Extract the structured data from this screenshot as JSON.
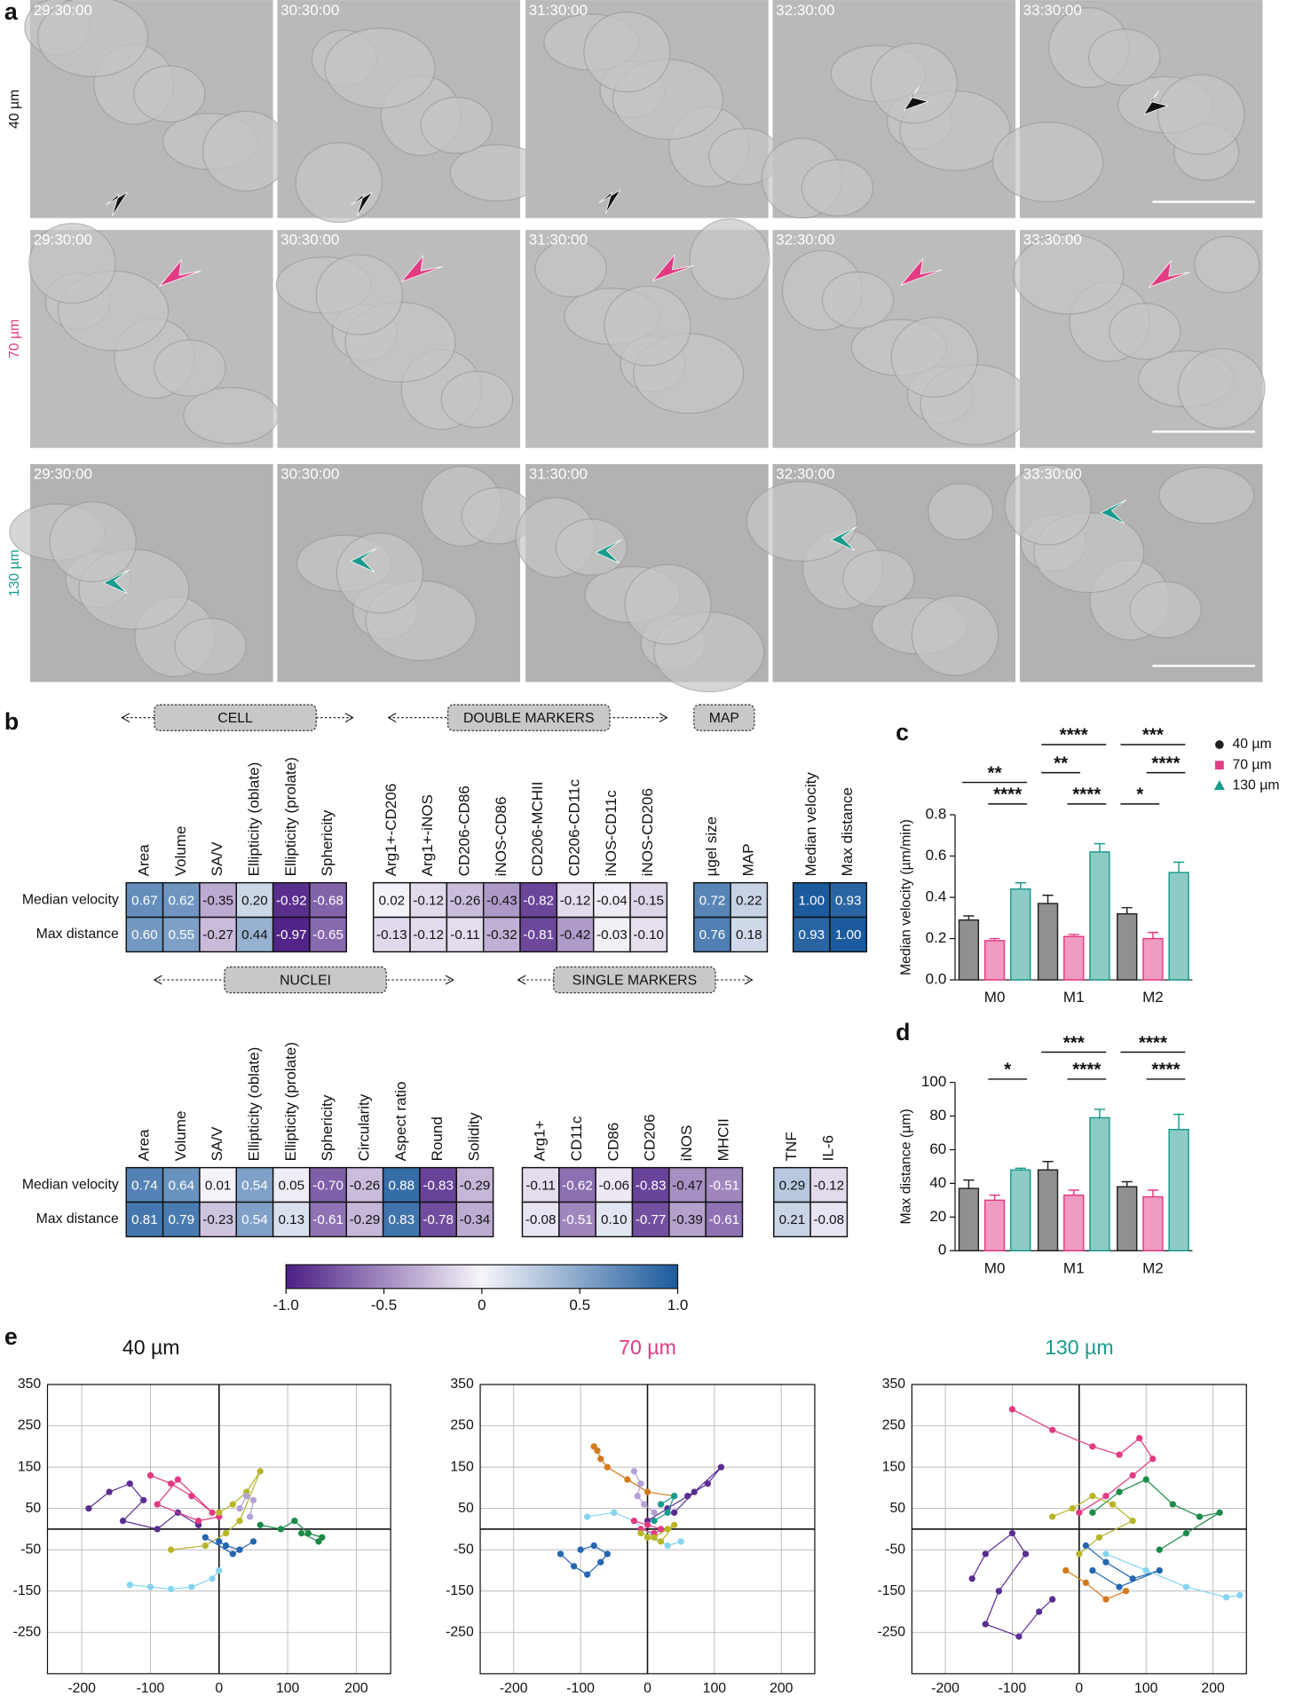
{
  "panel_a": {
    "label": "a",
    "times": [
      "29:30:00",
      "30:30:00",
      "31:30:00",
      "32:30:00",
      "33:30:00"
    ],
    "rows": [
      "40 µm",
      "70 µm",
      "130 µm"
    ],
    "row_colors": [
      "#111111",
      "#e23a83",
      "#1a9a8c"
    ]
  },
  "panel_b": {
    "label": "b",
    "sections": [
      "CELL",
      "DOUBLE MARKERS",
      "MAP",
      "NUCLEI",
      "SINGLE MARKERS"
    ],
    "row_labels": [
      "Median velocity",
      "Max distance"
    ],
    "groups": [
      {
        "columns": [
          "Area",
          "Volume",
          "SA/V",
          "Ellipticity (oblate)",
          "Ellipticity (prolate)",
          "Sphericity"
        ],
        "rows": [
          [
            "0.67",
            "0.62",
            "-0.35",
            "0.20",
            "-0.92",
            "-0.68"
          ],
          [
            "0.60",
            "0.55",
            "-0.27",
            "0.44",
            "-0.97",
            "-0.65"
          ]
        ]
      },
      {
        "columns": [
          "Arg1+-CD206",
          "Arg1+-iNOS",
          "CD206-CD86",
          "iNOS-CD86",
          "CD206-MCHII",
          "CD206-CD11c",
          "iNOS-CD11c",
          "iNOS-CD206"
        ],
        "rows": [
          [
            "0.02",
            "-0.12",
            "-0.26",
            "-0.43",
            "-0.82",
            "-0.12",
            "-0.04",
            "-0.15"
          ],
          [
            "-0.13",
            "-0.12",
            "-0.11",
            "-0.32",
            "-0.81",
            "-0.42",
            "-0.03",
            "-0.10"
          ]
        ]
      },
      {
        "columns": [
          "µgel size",
          "MAP"
        ],
        "rows": [
          [
            "0.72",
            "0.22"
          ],
          [
            "0.76",
            "0.18"
          ]
        ]
      },
      {
        "columns": [
          "Median velocity",
          "Max distance"
        ],
        "rows": [
          [
            "1.00",
            "0.93"
          ],
          [
            "0.93",
            "1.00"
          ]
        ]
      },
      {
        "columns": [
          "Area",
          "Volume",
          "SA/V",
          "Ellipticity (oblate)",
          "Ellipticity (prolate)",
          "Sphericity",
          "Circularity",
          "Aspect ratio",
          "Round",
          "Solidity"
        ],
        "rows": [
          [
            "0.74",
            "0.64",
            "0.01",
            "0.54",
            "0.05",
            "-0.70",
            "-0.26",
            "0.88",
            "-0.83",
            "-0.29"
          ],
          [
            "0.81",
            "0.79",
            "-0.23",
            "0.54",
            "0.13",
            "-0.61",
            "-0.29",
            "0.83",
            "-0.78",
            "-0.34"
          ]
        ]
      },
      {
        "columns": [
          "Arg1+",
          "CD11c",
          "CD86",
          "CD206",
          "iNOS",
          "MHCII"
        ],
        "rows": [
          [
            "-0.11",
            "-0.62",
            "-0.06",
            "-0.83",
            "-0.47",
            "-0.51"
          ],
          [
            "-0.08",
            "-0.51",
            "0.10",
            "-0.77",
            "-0.39",
            "-0.61"
          ]
        ]
      },
      {
        "columns": [
          "TNF",
          "IL-6"
        ],
        "rows": [
          [
            "0.29",
            "-0.12"
          ],
          [
            "0.21",
            "-0.08"
          ]
        ]
      }
    ],
    "colorbar": {
      "lim": [
        -1,
        1
      ],
      "ticks": [
        {
          "value": -1,
          "label": "-1.0"
        },
        -0.5,
        0,
        0.5,
        {
          "value": 1,
          "label": "1.0"
        }
      ]
    }
  },
  "chart_data": [
    {
      "type": "bar",
      "panel": "c",
      "y_label": "Median velocity (µm/min)",
      "categories": [
        "M0",
        "M1",
        "M2"
      ],
      "series": [
        {
          "name": "40 µm",
          "color": "#222222",
          "values": [
            0.29,
            0.37,
            0.32
          ],
          "errors": [
            0.02,
            0.04,
            0.03
          ]
        },
        {
          "name": "70 µm",
          "color": "#e23a83",
          "values": [
            0.19,
            0.21,
            0.2
          ],
          "errors": [
            0.01,
            0.01,
            0.03
          ]
        },
        {
          "name": "130 µm",
          "color": "#1a9a8c",
          "values": [
            0.44,
            0.62,
            0.52
          ],
          "errors": [
            0.03,
            0.04,
            0.05
          ]
        }
      ],
      "ylim": [
        0,
        0.8
      ],
      "yticks": [
        {
          "value": 0,
          "label": "0.0"
        },
        0.2,
        0.4,
        0.6,
        0.8
      ],
      "annotations": [
        "**",
        "****",
        "****",
        "**",
        "****",
        "***",
        "****",
        "*"
      ],
      "legend": "right"
    },
    {
      "type": "bar",
      "panel": "d",
      "y_label": "Max distance (µm)",
      "categories": [
        "M0",
        "M1",
        "M2"
      ],
      "series": [
        {
          "name": "40 µm",
          "color": "#222222",
          "values": [
            37,
            48,
            38
          ],
          "errors": [
            5,
            5,
            3
          ]
        },
        {
          "name": "70 µm",
          "color": "#e23a83",
          "values": [
            30,
            33,
            32
          ],
          "errors": [
            3,
            3,
            4
          ]
        },
        {
          "name": "130 µm",
          "color": "#1a9a8c",
          "values": [
            48,
            79,
            72
          ],
          "errors": [
            1,
            5,
            9
          ]
        }
      ],
      "ylim": [
        0,
        100
      ],
      "yticks": [
        0,
        20,
        40,
        60,
        80,
        100
      ],
      "annotations": [
        "*",
        "***",
        "****",
        "****",
        "****"
      ]
    },
    {
      "type": "scatter",
      "panel": "e",
      "title": "40 µm",
      "title_color": "#111111",
      "grid": true,
      "xlim": [
        -250,
        250
      ],
      "ylim": [
        -350,
        350
      ],
      "xticks": [
        -200,
        -100,
        0,
        100,
        200
      ],
      "yticks": [
        -250,
        -150,
        -50,
        50,
        150,
        250,
        350
      ],
      "series": [
        {
          "color": "#5a2d91",
          "x": [
            -190,
            -160,
            -130,
            -110,
            -140,
            -90,
            -60,
            -30
          ],
          "values": [
            50,
            90,
            110,
            70,
            20,
            0,
            40,
            10
          ]
        },
        {
          "color": "#e23a83",
          "x": [
            -100,
            -70,
            -40,
            -10,
            -60,
            -90,
            -30,
            0
          ],
          "values": [
            130,
            110,
            80,
            40,
            120,
            60,
            20,
            30
          ]
        },
        {
          "color": "#b8b528",
          "x": [
            0,
            20,
            40,
            60,
            30,
            10,
            -20,
            -70
          ],
          "values": [
            40,
            60,
            90,
            140,
            20,
            -10,
            -40,
            -50
          ]
        },
        {
          "color": "#1b8a48",
          "x": [
            60,
            90,
            110,
            130,
            150,
            145,
            120
          ],
          "values": [
            10,
            0,
            20,
            -10,
            -20,
            -30,
            -10
          ]
        },
        {
          "color": "#2466b0",
          "x": [
            0,
            10,
            30,
            50,
            20,
            -20
          ],
          "values": [
            -30,
            -40,
            -50,
            -30,
            -60,
            -20
          ]
        },
        {
          "color": "#86d4ef",
          "x": [
            -130,
            -100,
            -70,
            -40,
            -10,
            0
          ],
          "values": [
            -135,
            -140,
            -145,
            -140,
            -120,
            -100
          ]
        },
        {
          "color": "#b3a0d6",
          "x": [
            30,
            40,
            50,
            45
          ],
          "values": [
            50,
            80,
            70,
            30
          ]
        }
      ]
    },
    {
      "type": "scatter",
      "panel": "e",
      "title": "70 µm",
      "title_color": "#e23a83",
      "grid": true,
      "xlim": [
        -250,
        250
      ],
      "ylim": [
        -350,
        350
      ],
      "xticks": [
        -200,
        -100,
        0,
        100,
        200
      ],
      "yticks": [
        -250,
        -150,
        -50,
        50,
        150,
        250,
        350
      ],
      "series": [
        {
          "color": "#d47a1e",
          "x": [
            -80,
            -75,
            -70,
            -60,
            -30,
            0,
            40
          ],
          "values": [
            200,
            190,
            170,
            150,
            120,
            90,
            80
          ]
        },
        {
          "color": "#5a2d91",
          "x": [
            0,
            30,
            60,
            90,
            110,
            70,
            40
          ],
          "values": [
            20,
            50,
            80,
            110,
            150,
            90,
            40
          ]
        },
        {
          "color": "#2466b0",
          "x": [
            -130,
            -110,
            -90,
            -70,
            -60,
            -80,
            -100
          ],
          "values": [
            -60,
            -90,
            -110,
            -80,
            -60,
            -40,
            -50
          ]
        },
        {
          "color": "#86d4ef",
          "x": [
            -90,
            -50,
            -20,
            10,
            30,
            50
          ],
          "values": [
            30,
            40,
            20,
            -20,
            -40,
            -30
          ]
        },
        {
          "color": "#b3a0d6",
          "x": [
            -20,
            -10,
            -15,
            -5,
            10
          ],
          "values": [
            140,
            110,
            80,
            60,
            40
          ]
        },
        {
          "color": "#e23a83",
          "x": [
            -20,
            0,
            20,
            10,
            -10
          ],
          "values": [
            20,
            10,
            0,
            -10,
            0
          ]
        },
        {
          "color": "#b8b528",
          "x": [
            -10,
            10,
            30,
            40,
            20,
            0
          ],
          "values": [
            -10,
            -20,
            0,
            10,
            -30,
            -20
          ]
        },
        {
          "color": "#1a9a8c",
          "x": [
            20,
            40,
            30,
            10
          ],
          "values": [
            60,
            80,
            40,
            20
          ]
        }
      ]
    },
    {
      "type": "scatter",
      "panel": "e",
      "title": "130 µm",
      "title_color": "#1a9a8c",
      "grid": true,
      "xlim": [
        -250,
        250
      ],
      "ylim": [
        -350,
        350
      ],
      "xticks": [
        -200,
        -100,
        0,
        100,
        200
      ],
      "yticks": [
        -250,
        -150,
        -50,
        50,
        150,
        250,
        350
      ],
      "series": [
        {
          "color": "#e23a83",
          "x": [
            -100,
            -40,
            20,
            60,
            90,
            110,
            80,
            40,
            0
          ],
          "values": [
            290,
            240,
            200,
            180,
            220,
            170,
            130,
            80,
            40
          ]
        },
        {
          "color": "#5a2d91",
          "x": [
            -160,
            -140,
            -100,
            -80,
            -120,
            -140,
            -90,
            -60,
            -40
          ],
          "values": [
            -120,
            -60,
            -10,
            -60,
            -150,
            -230,
            -260,
            -200,
            -170
          ]
        },
        {
          "color": "#1b8a48",
          "x": [
            20,
            60,
            100,
            140,
            180,
            210,
            160,
            120
          ],
          "values": [
            40,
            90,
            120,
            60,
            30,
            40,
            -10,
            -50
          ]
        },
        {
          "color": "#b8b528",
          "x": [
            -40,
            -10,
            20,
            50,
            80,
            30,
            0
          ],
          "values": [
            30,
            50,
            80,
            60,
            20,
            -20,
            -60
          ]
        },
        {
          "color": "#2466b0",
          "x": [
            10,
            40,
            80,
            120,
            60,
            20
          ],
          "values": [
            -40,
            -80,
            -120,
            -100,
            -140,
            -100
          ]
        },
        {
          "color": "#86d4ef",
          "x": [
            40,
            100,
            160,
            220,
            240
          ],
          "values": [
            -60,
            -100,
            -140,
            -165,
            -160
          ]
        },
        {
          "color": "#d47a1e",
          "x": [
            -20,
            10,
            40,
            70
          ],
          "values": [
            -100,
            -130,
            -170,
            -150
          ]
        }
      ]
    }
  ]
}
